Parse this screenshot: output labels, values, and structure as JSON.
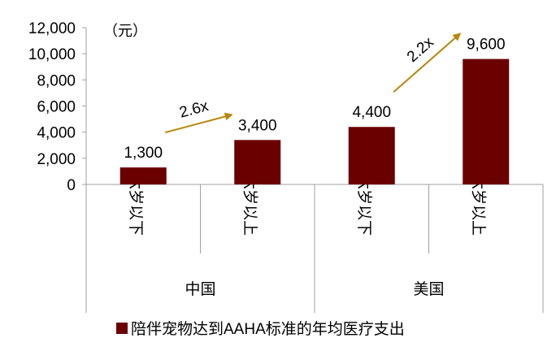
{
  "chart_data": {
    "type": "bar",
    "unit": "（元）",
    "categories": [
      "六岁以下",
      "六岁以上",
      "六岁以下",
      "六岁以上"
    ],
    "groups": [
      {
        "label": "中国",
        "span": [
          0,
          1
        ]
      },
      {
        "label": "美国",
        "span": [
          2,
          3
        ]
      }
    ],
    "series": [
      {
        "name": "陪伴宠物达到AAHA标准的年均医疗支出",
        "values": [
          1300,
          3400,
          4400,
          9600
        ],
        "labels": [
          "1,300",
          "3,400",
          "4,400",
          "9,600"
        ],
        "color": "#6b0000"
      }
    ],
    "annotations": [
      {
        "text": "2.6x",
        "from": 0,
        "to": 1
      },
      {
        "text": "2.2x",
        "from": 2,
        "to": 3
      }
    ],
    "annotation_color": "#b8860b",
    "ylim": [
      0,
      12000
    ],
    "yticks": [
      0,
      2000,
      4000,
      6000,
      8000,
      10000,
      12000
    ],
    "ytick_labels": [
      "0",
      "2,000",
      "4,000",
      "6,000",
      "8,000",
      "10,000",
      "12,000"
    ],
    "grid": false,
    "legend": "bottom"
  }
}
